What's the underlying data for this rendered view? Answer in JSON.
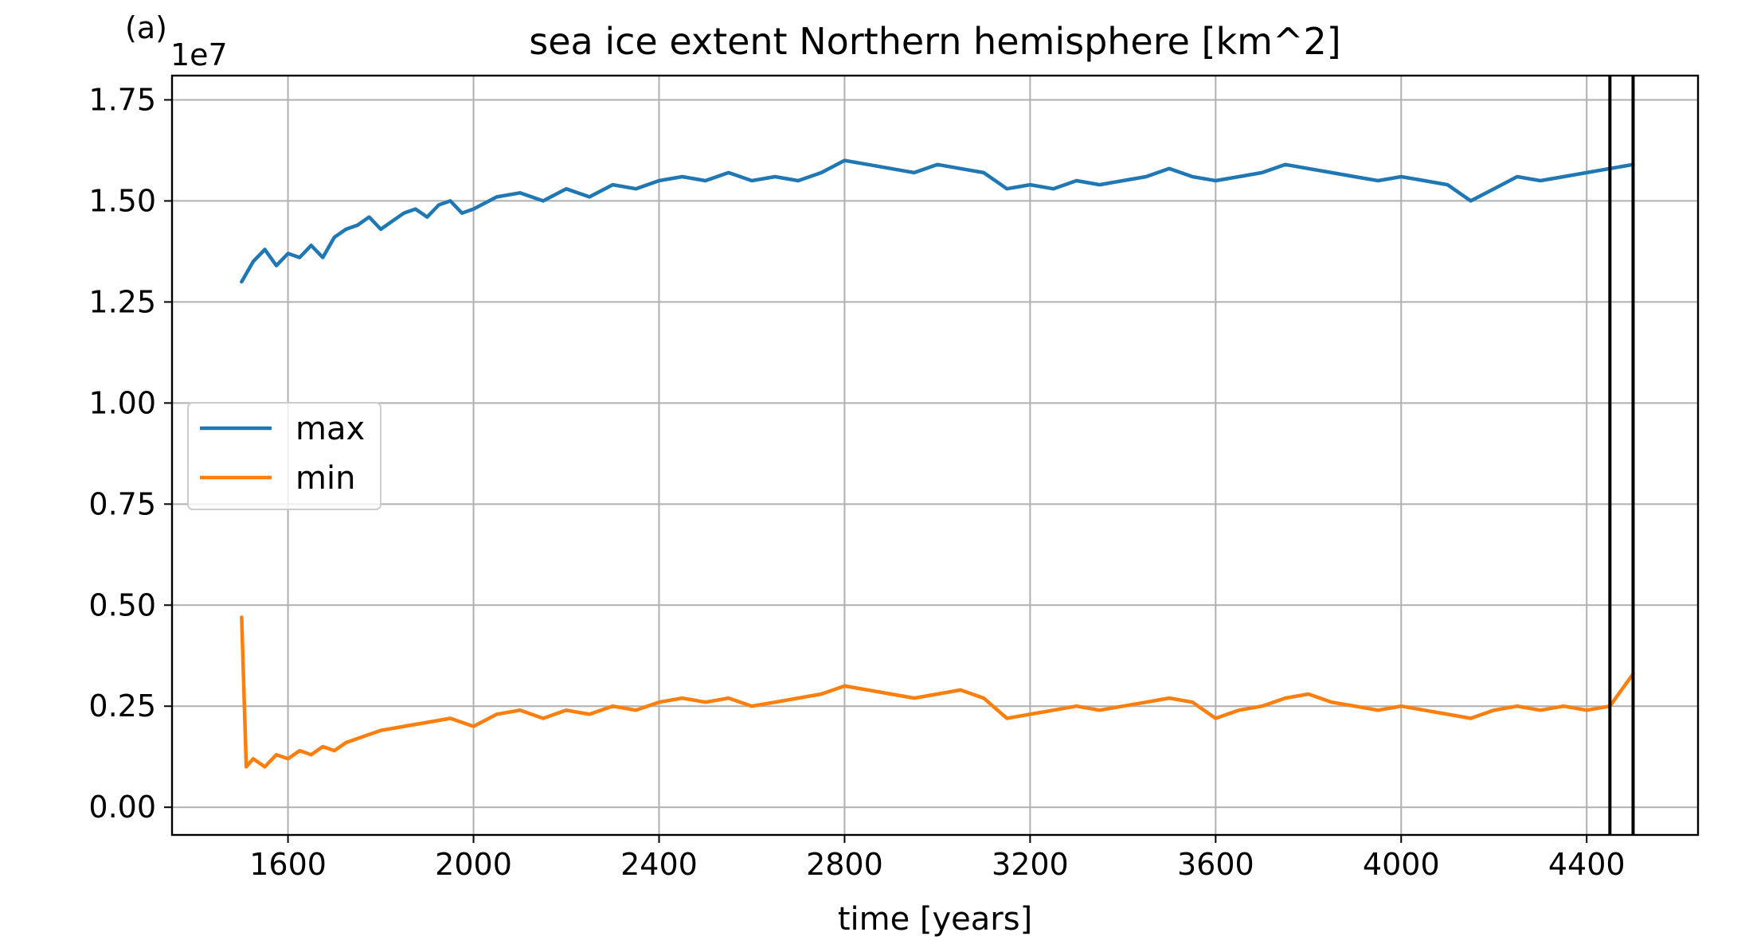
{
  "figure": {
    "panel_label": "(a)"
  },
  "chart_data": {
    "type": "line",
    "title": "sea ice extent Northern hemisphere [km^2]",
    "xlabel": "time [years]",
    "ylabel": "",
    "offset_label": "1e7",
    "y_multiplier": 10000000,
    "xlim": [
      1350,
      4640
    ],
    "ylim": [
      -0.0685,
      1.81
    ],
    "x_ticks": [
      1600,
      2000,
      2400,
      2800,
      3200,
      3600,
      4000,
      4400
    ],
    "x_tick_labels": [
      "1600",
      "2000",
      "2400",
      "2800",
      "3200",
      "3600",
      "4000",
      "4400"
    ],
    "y_ticks": [
      0.0,
      0.25,
      0.5,
      0.75,
      1.0,
      1.25,
      1.5,
      1.75
    ],
    "y_tick_labels": [
      "0.00",
      "0.25",
      "0.50",
      "0.75",
      "1.00",
      "1.25",
      "1.50",
      "1.75"
    ],
    "grid": true,
    "legend_position": "center-left",
    "vertical_lines": [
      4450,
      4500
    ],
    "vertical_line_color": "#000000",
    "series": [
      {
        "name": "max",
        "color": "#1f77b4",
        "points": [
          [
            1500,
            1.3
          ],
          [
            1525,
            1.35
          ],
          [
            1550,
            1.38
          ],
          [
            1575,
            1.34
          ],
          [
            1600,
            1.37
          ],
          [
            1625,
            1.36
          ],
          [
            1650,
            1.39
          ],
          [
            1675,
            1.36
          ],
          [
            1700,
            1.41
          ],
          [
            1725,
            1.43
          ],
          [
            1750,
            1.44
          ],
          [
            1775,
            1.46
          ],
          [
            1800,
            1.43
          ],
          [
            1825,
            1.45
          ],
          [
            1850,
            1.47
          ],
          [
            1875,
            1.48
          ],
          [
            1900,
            1.46
          ],
          [
            1925,
            1.49
          ],
          [
            1950,
            1.5
          ],
          [
            1975,
            1.47
          ],
          [
            2000,
            1.48
          ],
          [
            2050,
            1.51
          ],
          [
            2100,
            1.52
          ],
          [
            2150,
            1.5
          ],
          [
            2200,
            1.53
          ],
          [
            2250,
            1.51
          ],
          [
            2300,
            1.54
          ],
          [
            2350,
            1.53
          ],
          [
            2400,
            1.55
          ],
          [
            2450,
            1.56
          ],
          [
            2500,
            1.55
          ],
          [
            2550,
            1.57
          ],
          [
            2600,
            1.55
          ],
          [
            2650,
            1.56
          ],
          [
            2700,
            1.55
          ],
          [
            2750,
            1.57
          ],
          [
            2800,
            1.6
          ],
          [
            2850,
            1.59
          ],
          [
            2900,
            1.58
          ],
          [
            2950,
            1.57
          ],
          [
            3000,
            1.59
          ],
          [
            3050,
            1.58
          ],
          [
            3100,
            1.57
          ],
          [
            3150,
            1.53
          ],
          [
            3200,
            1.54
          ],
          [
            3250,
            1.53
          ],
          [
            3300,
            1.55
          ],
          [
            3350,
            1.54
          ],
          [
            3400,
            1.55
          ],
          [
            3450,
            1.56
          ],
          [
            3500,
            1.58
          ],
          [
            3550,
            1.56
          ],
          [
            3600,
            1.55
          ],
          [
            3650,
            1.56
          ],
          [
            3700,
            1.57
          ],
          [
            3750,
            1.59
          ],
          [
            3800,
            1.58
          ],
          [
            3850,
            1.57
          ],
          [
            3900,
            1.56
          ],
          [
            3950,
            1.55
          ],
          [
            4000,
            1.56
          ],
          [
            4050,
            1.55
          ],
          [
            4100,
            1.54
          ],
          [
            4150,
            1.5
          ],
          [
            4200,
            1.53
          ],
          [
            4250,
            1.56
          ],
          [
            4300,
            1.55
          ],
          [
            4350,
            1.56
          ],
          [
            4400,
            1.57
          ],
          [
            4450,
            1.58
          ],
          [
            4500,
            1.59
          ]
        ]
      },
      {
        "name": "min",
        "color": "#ff7f0e",
        "points": [
          [
            1500,
            0.47
          ],
          [
            1510,
            0.1
          ],
          [
            1525,
            0.12
          ],
          [
            1550,
            0.1
          ],
          [
            1575,
            0.13
          ],
          [
            1600,
            0.12
          ],
          [
            1625,
            0.14
          ],
          [
            1650,
            0.13
          ],
          [
            1675,
            0.15
          ],
          [
            1700,
            0.14
          ],
          [
            1725,
            0.16
          ],
          [
            1750,
            0.17
          ],
          [
            1775,
            0.18
          ],
          [
            1800,
            0.19
          ],
          [
            1850,
            0.2
          ],
          [
            1900,
            0.21
          ],
          [
            1950,
            0.22
          ],
          [
            2000,
            0.2
          ],
          [
            2050,
            0.23
          ],
          [
            2100,
            0.24
          ],
          [
            2150,
            0.22
          ],
          [
            2200,
            0.24
          ],
          [
            2250,
            0.23
          ],
          [
            2300,
            0.25
          ],
          [
            2350,
            0.24
          ],
          [
            2400,
            0.26
          ],
          [
            2450,
            0.27
          ],
          [
            2500,
            0.26
          ],
          [
            2550,
            0.27
          ],
          [
            2600,
            0.25
          ],
          [
            2650,
            0.26
          ],
          [
            2700,
            0.27
          ],
          [
            2750,
            0.28
          ],
          [
            2800,
            0.3
          ],
          [
            2850,
            0.29
          ],
          [
            2900,
            0.28
          ],
          [
            2950,
            0.27
          ],
          [
            3000,
            0.28
          ],
          [
            3050,
            0.29
          ],
          [
            3100,
            0.27
          ],
          [
            3150,
            0.22
          ],
          [
            3200,
            0.23
          ],
          [
            3250,
            0.24
          ],
          [
            3300,
            0.25
          ],
          [
            3350,
            0.24
          ],
          [
            3400,
            0.25
          ],
          [
            3450,
            0.26
          ],
          [
            3500,
            0.27
          ],
          [
            3550,
            0.26
          ],
          [
            3600,
            0.22
          ],
          [
            3650,
            0.24
          ],
          [
            3700,
            0.25
          ],
          [
            3750,
            0.27
          ],
          [
            3800,
            0.28
          ],
          [
            3850,
            0.26
          ],
          [
            3900,
            0.25
          ],
          [
            3950,
            0.24
          ],
          [
            4000,
            0.25
          ],
          [
            4050,
            0.24
          ],
          [
            4100,
            0.23
          ],
          [
            4150,
            0.22
          ],
          [
            4200,
            0.24
          ],
          [
            4250,
            0.25
          ],
          [
            4300,
            0.24
          ],
          [
            4350,
            0.25
          ],
          [
            4400,
            0.24
          ],
          [
            4450,
            0.25
          ],
          [
            4500,
            0.33
          ]
        ]
      }
    ]
  }
}
